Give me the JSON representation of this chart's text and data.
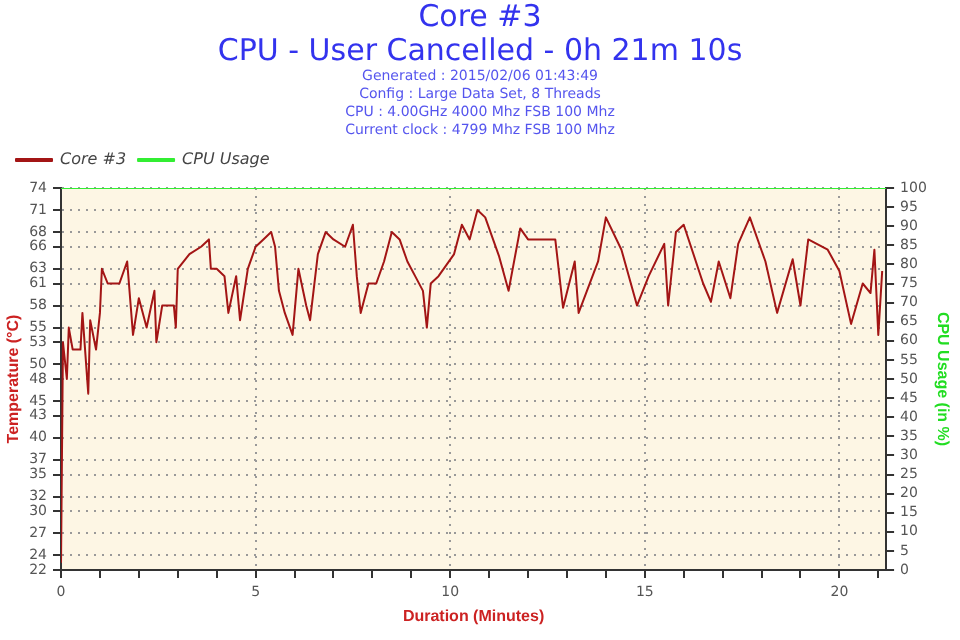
{
  "chart_data": {
    "type": "line",
    "title": "Core #3",
    "subtitle": "CPU - User Cancelled - 0h 21m 10s",
    "annotations": [
      "Generated : 2015/02/06 01:43:49",
      "Config : Large Data Set, 8 Threads",
      "CPU : 4.00GHz 4000 Mhz FSB 100 Mhz",
      "Current clock : 4799 Mhz FSB 100 Mhz"
    ],
    "xlabel": "Duration (Minutes)",
    "ylabel": "Temperature (°C)",
    "y2label": "CPU Usage (in %)",
    "xlim": [
      0,
      21.2
    ],
    "xticks": [
      0,
      {
        "value": 1,
        "label": null
      },
      {
        "value": 2,
        "label": null
      },
      {
        "value": 3,
        "label": null
      },
      {
        "value": 4,
        "label": null
      },
      5,
      {
        "value": 6,
        "label": null
      },
      {
        "value": 7,
        "label": null
      },
      {
        "value": 8,
        "label": null
      },
      {
        "value": 9,
        "label": null
      },
      10,
      {
        "value": 11,
        "label": null
      },
      {
        "value": 12,
        "label": null
      },
      {
        "value": 13,
        "label": null
      },
      {
        "value": 14,
        "label": null
      },
      15,
      {
        "value": 16,
        "label": null
      },
      {
        "value": 17,
        "label": null
      },
      {
        "value": 18,
        "label": null
      },
      {
        "value": 19,
        "label": null
      },
      20,
      {
        "value": 21,
        "label": null
      }
    ],
    "ylim": [
      22,
      74
    ],
    "yticks": [
      22,
      24,
      27,
      30,
      32,
      35,
      37,
      40,
      43,
      45,
      48,
      50,
      53,
      55,
      58,
      61,
      63,
      66,
      68,
      71,
      74
    ],
    "y2lim": [
      0,
      100
    ],
    "y2ticks": [
      0,
      5,
      10,
      15,
      20,
      25,
      30,
      35,
      40,
      45,
      50,
      55,
      60,
      65,
      70,
      75,
      80,
      85,
      90,
      95,
      100
    ],
    "grid": true,
    "legend": "top left",
    "marker": "none",
    "series": [
      {
        "name": "Core #3",
        "color": "#a31515",
        "x": [
          0,
          0.05,
          0.15,
          0.2,
          0.3,
          0.5,
          0.55,
          0.7,
          0.75,
          0.9,
          1,
          1.05,
          1.2,
          1.5,
          1.7,
          1.85,
          2,
          2.2,
          2.4,
          2.45,
          2.6,
          2.9,
          2.95,
          3,
          3.3,
          3.6,
          3.8,
          3.85,
          4,
          4.2,
          4.3,
          4.5,
          4.6,
          4.8,
          5,
          5.2,
          5.4,
          5.5,
          5.6,
          5.75,
          5.95,
          6.1,
          6.3,
          6.4,
          6.6,
          6.8,
          7,
          7.3,
          7.5,
          7.6,
          7.7,
          7.9,
          8.1,
          8.3,
          8.5,
          8.7,
          8.9,
          9.1,
          9.3,
          9.4,
          9.5,
          9.7,
          10.1,
          10.3,
          10.5,
          10.7,
          10.9,
          11.25,
          11.5,
          11.8,
          12,
          12.7,
          12.9,
          13.2,
          13.3,
          13.8,
          14,
          14.4,
          14.8,
          15.1,
          15.5,
          15.6,
          15.8,
          16,
          16.5,
          16.7,
          16.9,
          17.2,
          17.4,
          17.7,
          18.1,
          18.4,
          18.8,
          19,
          19.2,
          19.7,
          20,
          20.3,
          20.6,
          20.8,
          20.9,
          21,
          21.1
        ],
        "values": [
          23,
          53,
          48,
          55,
          52,
          52,
          57,
          46,
          56,
          52,
          57,
          63,
          61,
          61,
          64,
          54,
          59,
          55,
          60,
          53,
          58,
          58,
          55,
          63,
          65,
          66,
          67,
          63,
          63,
          62,
          57,
          62,
          56,
          63,
          66,
          67,
          68,
          66,
          60,
          57,
          54,
          63,
          58,
          56,
          65,
          68,
          67,
          66,
          69,
          62,
          57,
          61,
          61,
          64,
          68,
          67,
          64,
          62,
          60,
          55,
          61,
          62,
          65,
          69,
          67,
          71,
          70,
          64.8,
          60,
          68.5,
          67,
          67,
          57.7,
          64,
          57,
          64,
          70,
          65.6,
          58,
          62,
          66.4,
          58,
          68,
          69,
          61,
          58.5,
          64,
          59,
          66.4,
          70,
          64,
          57,
          64.3,
          58,
          67,
          65.6,
          62.7,
          55.5,
          61,
          59.7,
          65.6,
          54,
          62.7
        ]
      },
      {
        "name": "CPU Usage",
        "color": "#33ee33",
        "axis": "y2",
        "x": [
          0,
          21.2
        ],
        "values": [
          100,
          100
        ]
      }
    ]
  }
}
